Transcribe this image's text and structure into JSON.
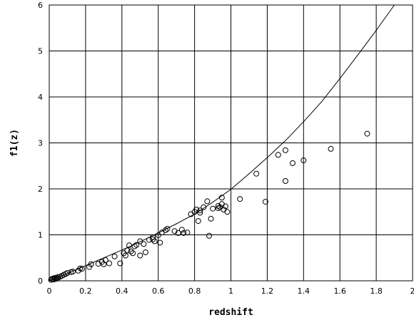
{
  "chart_data": {
    "type": "scatter",
    "title": "",
    "xlabel": "redshift",
    "ylabel": "f1(z)",
    "xlim": [
      0,
      2
    ],
    "ylim": [
      0,
      6
    ],
    "xticks": [
      "0",
      "0.2",
      "0.4",
      "0.6",
      "0.8",
      "1",
      "1.2",
      "1.4",
      "1.6",
      "1.8",
      "2"
    ],
    "yticks": [
      "0",
      "1",
      "2",
      "3",
      "4",
      "5",
      "6"
    ],
    "grid": true,
    "legend": "none",
    "colors": {
      "points": "#000000",
      "curve": "#000000",
      "grid": "#000000"
    },
    "series": [
      {
        "kind": "scatter",
        "marker": "open-circle",
        "points": [
          [
            0.01,
            0.02
          ],
          [
            0.015,
            0.04
          ],
          [
            0.02,
            0.05
          ],
          [
            0.025,
            0.03
          ],
          [
            0.03,
            0.06
          ],
          [
            0.035,
            0.04
          ],
          [
            0.04,
            0.07
          ],
          [
            0.045,
            0.05
          ],
          [
            0.05,
            0.08
          ],
          [
            0.06,
            0.09
          ],
          [
            0.07,
            0.11
          ],
          [
            0.08,
            0.13
          ],
          [
            0.09,
            0.15
          ],
          [
            0.1,
            0.17
          ],
          [
            0.12,
            0.19
          ],
          [
            0.13,
            0.2
          ],
          [
            0.16,
            0.22
          ],
          [
            0.17,
            0.27
          ],
          [
            0.18,
            0.26
          ],
          [
            0.22,
            0.3
          ],
          [
            0.23,
            0.36
          ],
          [
            0.27,
            0.37
          ],
          [
            0.29,
            0.41
          ],
          [
            0.3,
            0.36
          ],
          [
            0.31,
            0.45
          ],
          [
            0.33,
            0.38
          ],
          [
            0.36,
            0.53
          ],
          [
            0.39,
            0.38
          ],
          [
            0.41,
            0.6
          ],
          [
            0.42,
            0.55
          ],
          [
            0.43,
            0.66
          ],
          [
            0.44,
            0.77
          ],
          [
            0.45,
            0.64
          ],
          [
            0.46,
            0.6
          ],
          [
            0.47,
            0.75
          ],
          [
            0.48,
            0.78
          ],
          [
            0.5,
            0.86
          ],
          [
            0.5,
            0.55
          ],
          [
            0.52,
            0.8
          ],
          [
            0.53,
            0.62
          ],
          [
            0.55,
            0.89
          ],
          [
            0.57,
            0.95
          ],
          [
            0.57,
            0.9
          ],
          [
            0.58,
            0.86
          ],
          [
            0.6,
            0.99
          ],
          [
            0.61,
            0.83
          ],
          [
            0.62,
            1.05
          ],
          [
            0.64,
            1.1
          ],
          [
            0.65,
            1.13
          ],
          [
            0.69,
            1.08
          ],
          [
            0.71,
            1.04
          ],
          [
            0.73,
            1.11
          ],
          [
            0.74,
            1.04
          ],
          [
            0.76,
            1.05
          ],
          [
            0.78,
            1.45
          ],
          [
            0.8,
            1.5
          ],
          [
            0.81,
            1.55
          ],
          [
            0.82,
            1.3
          ],
          [
            0.83,
            1.48
          ],
          [
            0.83,
            1.53
          ],
          [
            0.85,
            1.6
          ],
          [
            0.87,
            1.73
          ],
          [
            0.88,
            0.98
          ],
          [
            0.89,
            1.35
          ],
          [
            0.9,
            1.57
          ],
          [
            0.93,
            1.63
          ],
          [
            0.93,
            1.58
          ],
          [
            0.94,
            1.6
          ],
          [
            0.95,
            1.81
          ],
          [
            0.95,
            1.67
          ],
          [
            0.96,
            1.55
          ],
          [
            0.97,
            1.62
          ],
          [
            0.98,
            1.5
          ],
          [
            1.05,
            1.78
          ],
          [
            1.14,
            2.33
          ],
          [
            1.19,
            1.72
          ],
          [
            1.26,
            2.74
          ],
          [
            1.3,
            2.84
          ],
          [
            1.3,
            2.17
          ],
          [
            1.34,
            2.56
          ],
          [
            1.4,
            2.62
          ],
          [
            1.55,
            2.87
          ],
          [
            1.75,
            3.2
          ]
        ]
      },
      {
        "kind": "line",
        "points": [
          [
            0,
            0
          ],
          [
            0.1,
            0.16
          ],
          [
            0.2,
            0.33
          ],
          [
            0.3,
            0.5
          ],
          [
            0.4,
            0.67
          ],
          [
            0.5,
            0.85
          ],
          [
            0.6,
            1.04
          ],
          [
            0.7,
            1.24
          ],
          [
            0.8,
            1.45
          ],
          [
            0.9,
            1.71
          ],
          [
            1.0,
            1.99
          ],
          [
            1.1,
            2.33
          ],
          [
            1.2,
            2.68
          ],
          [
            1.3,
            3.05
          ],
          [
            1.4,
            3.46
          ],
          [
            1.5,
            3.9
          ],
          [
            1.6,
            4.4
          ],
          [
            1.7,
            4.92
          ],
          [
            1.8,
            5.45
          ],
          [
            1.9,
            6.0
          ]
        ]
      }
    ]
  }
}
